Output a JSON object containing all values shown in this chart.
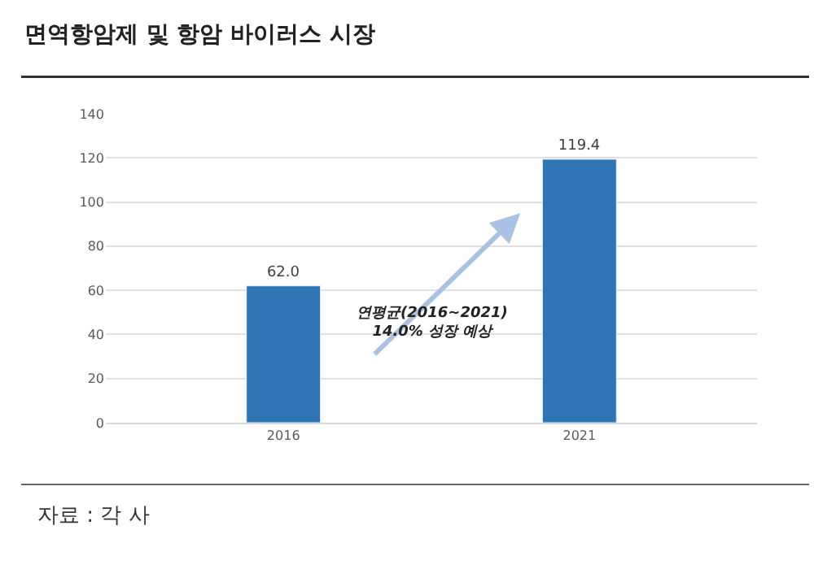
{
  "chart_data": {
    "type": "bar",
    "title": "면역항암제 및 항암 바이러스 시장",
    "categories": [
      "2016",
      "2021"
    ],
    "values": [
      62.0,
      119.4
    ],
    "color": "#2e75b6",
    "value_labels": [
      "62.0",
      "119.4"
    ],
    "ylim": [
      0,
      140
    ],
    "yticks": [
      0,
      20,
      40,
      60,
      80,
      100,
      120,
      140
    ],
    "grid": "y",
    "annotations": [
      "연평균(2016~2021)\n14.0% 성장 예상",
      "자료 : 각 사"
    ]
  }
}
